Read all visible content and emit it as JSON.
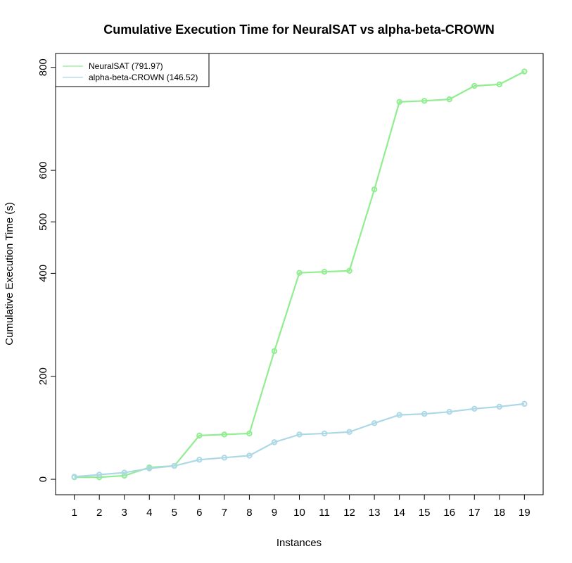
{
  "chart_data": {
    "type": "line",
    "title": "Cumulative Execution Time for NeuralSAT vs alpha-beta-CROWN",
    "xlabel": "Instances",
    "ylabel": "Cumulative Execution Time (s)",
    "x": [
      1,
      2,
      3,
      4,
      5,
      6,
      7,
      8,
      9,
      10,
      11,
      12,
      13,
      14,
      15,
      16,
      17,
      18,
      19
    ],
    "x_tick_labels": [
      "1",
      "2",
      "3",
      "4",
      "5",
      "6",
      "7",
      "8",
      "9",
      "10",
      "11",
      "12",
      "13",
      "14",
      "15",
      "16",
      "17",
      "18",
      "19"
    ],
    "y_ticks": [
      0,
      200,
      400,
      500,
      600,
      800
    ],
    "y_tick_labels": [
      "0",
      "200",
      "400",
      "500",
      "600",
      "800"
    ],
    "ylim": [
      -30,
      827
    ],
    "xlim": [
      0.25,
      19.75
    ],
    "grid": false,
    "legend_position": "top-left",
    "series": [
      {
        "name": "NeuralSAT (791.97)",
        "color": "#90ee90",
        "values": [
          4,
          4,
          7,
          23,
          26,
          85,
          87,
          89,
          249,
          401,
          403,
          405,
          563,
          733,
          735,
          738,
          764,
          767,
          791.97
        ]
      },
      {
        "name": "alpha-beta-CROWN (146.52)",
        "color": "#add8e6",
        "values": [
          5,
          9,
          13,
          21,
          26,
          38,
          42,
          46,
          72,
          87,
          89,
          92,
          109,
          125,
          127,
          131,
          137,
          141,
          146.52
        ]
      }
    ]
  }
}
